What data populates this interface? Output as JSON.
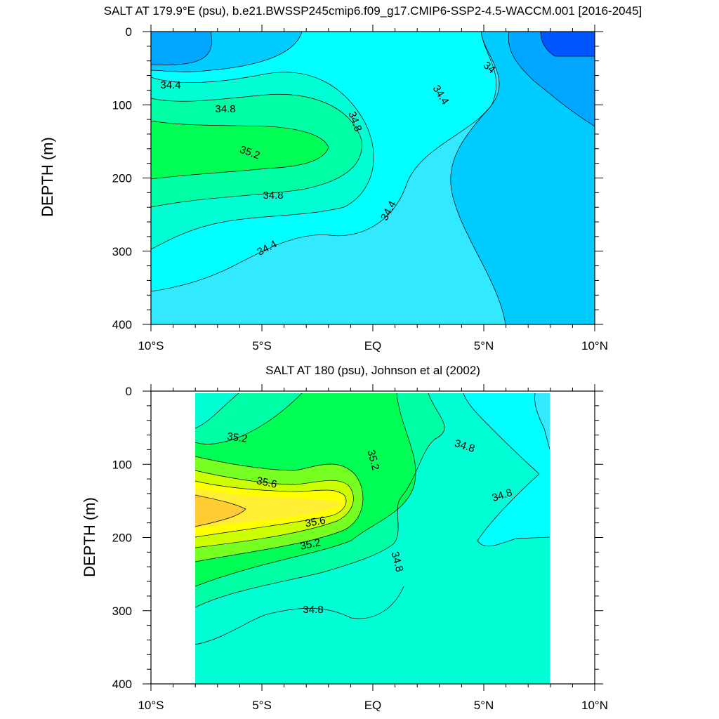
{
  "colors": {
    "s33_8": "#0055ff",
    "s34_0": "#00a6ff",
    "s34_2": "#00ccff",
    "s34_4": "#33e9ff",
    "s34_6": "#00ffff",
    "s34_8": "#00ffd5",
    "s35_0": "#00ffa5",
    "s35_2": "#00ff55",
    "s35_4": "#77ff22",
    "s35_6": "#ccff00",
    "s35_8": "#ffff00",
    "s35_9": "#ffee33",
    "s36_0": "#ffcc33"
  },
  "chart_data": [
    {
      "type": "contour",
      "title": "SALT AT 179.9°E (psu), b.e21.BWSSP245cmip6.f09_g17.CMIP6-SSP2-4.5-WACCM.001 [2016-2045]",
      "xlabel": "",
      "ylabel": "DEPTH (m)",
      "xlim": [
        -10,
        10
      ],
      "ylim": [
        0,
        400
      ],
      "x_ticks": [
        "10°S",
        "5°S",
        "EQ",
        "5°N",
        "10°N"
      ],
      "y_ticks": [
        "0",
        "100",
        "200",
        "300",
        "400"
      ],
      "contour_labels": [
        "34.4",
        "34.8",
        "35.2",
        "34.8",
        "34.4",
        "34.4",
        "34.8",
        "34.4",
        "34.4",
        "34"
      ],
      "units": "psu"
    },
    {
      "type": "contour",
      "title": "SALT AT 180 (psu), Johnson et al (2002)",
      "xlabel": "",
      "ylabel": "DEPTH (m)",
      "xlim": [
        -10,
        10
      ],
      "ylim": [
        0,
        400
      ],
      "data_xlim": [
        -8,
        8
      ],
      "x_ticks": [
        "10°S",
        "5°S",
        "EQ",
        "5°N",
        "10°N"
      ],
      "y_ticks": [
        "0",
        "100",
        "200",
        "300",
        "400"
      ],
      "contour_labels": [
        "35.2",
        "35.6",
        "35.6",
        "35.2",
        "35.2",
        "34.8",
        "34.8",
        "34.8",
        "34.8"
      ],
      "units": "psu"
    }
  ]
}
